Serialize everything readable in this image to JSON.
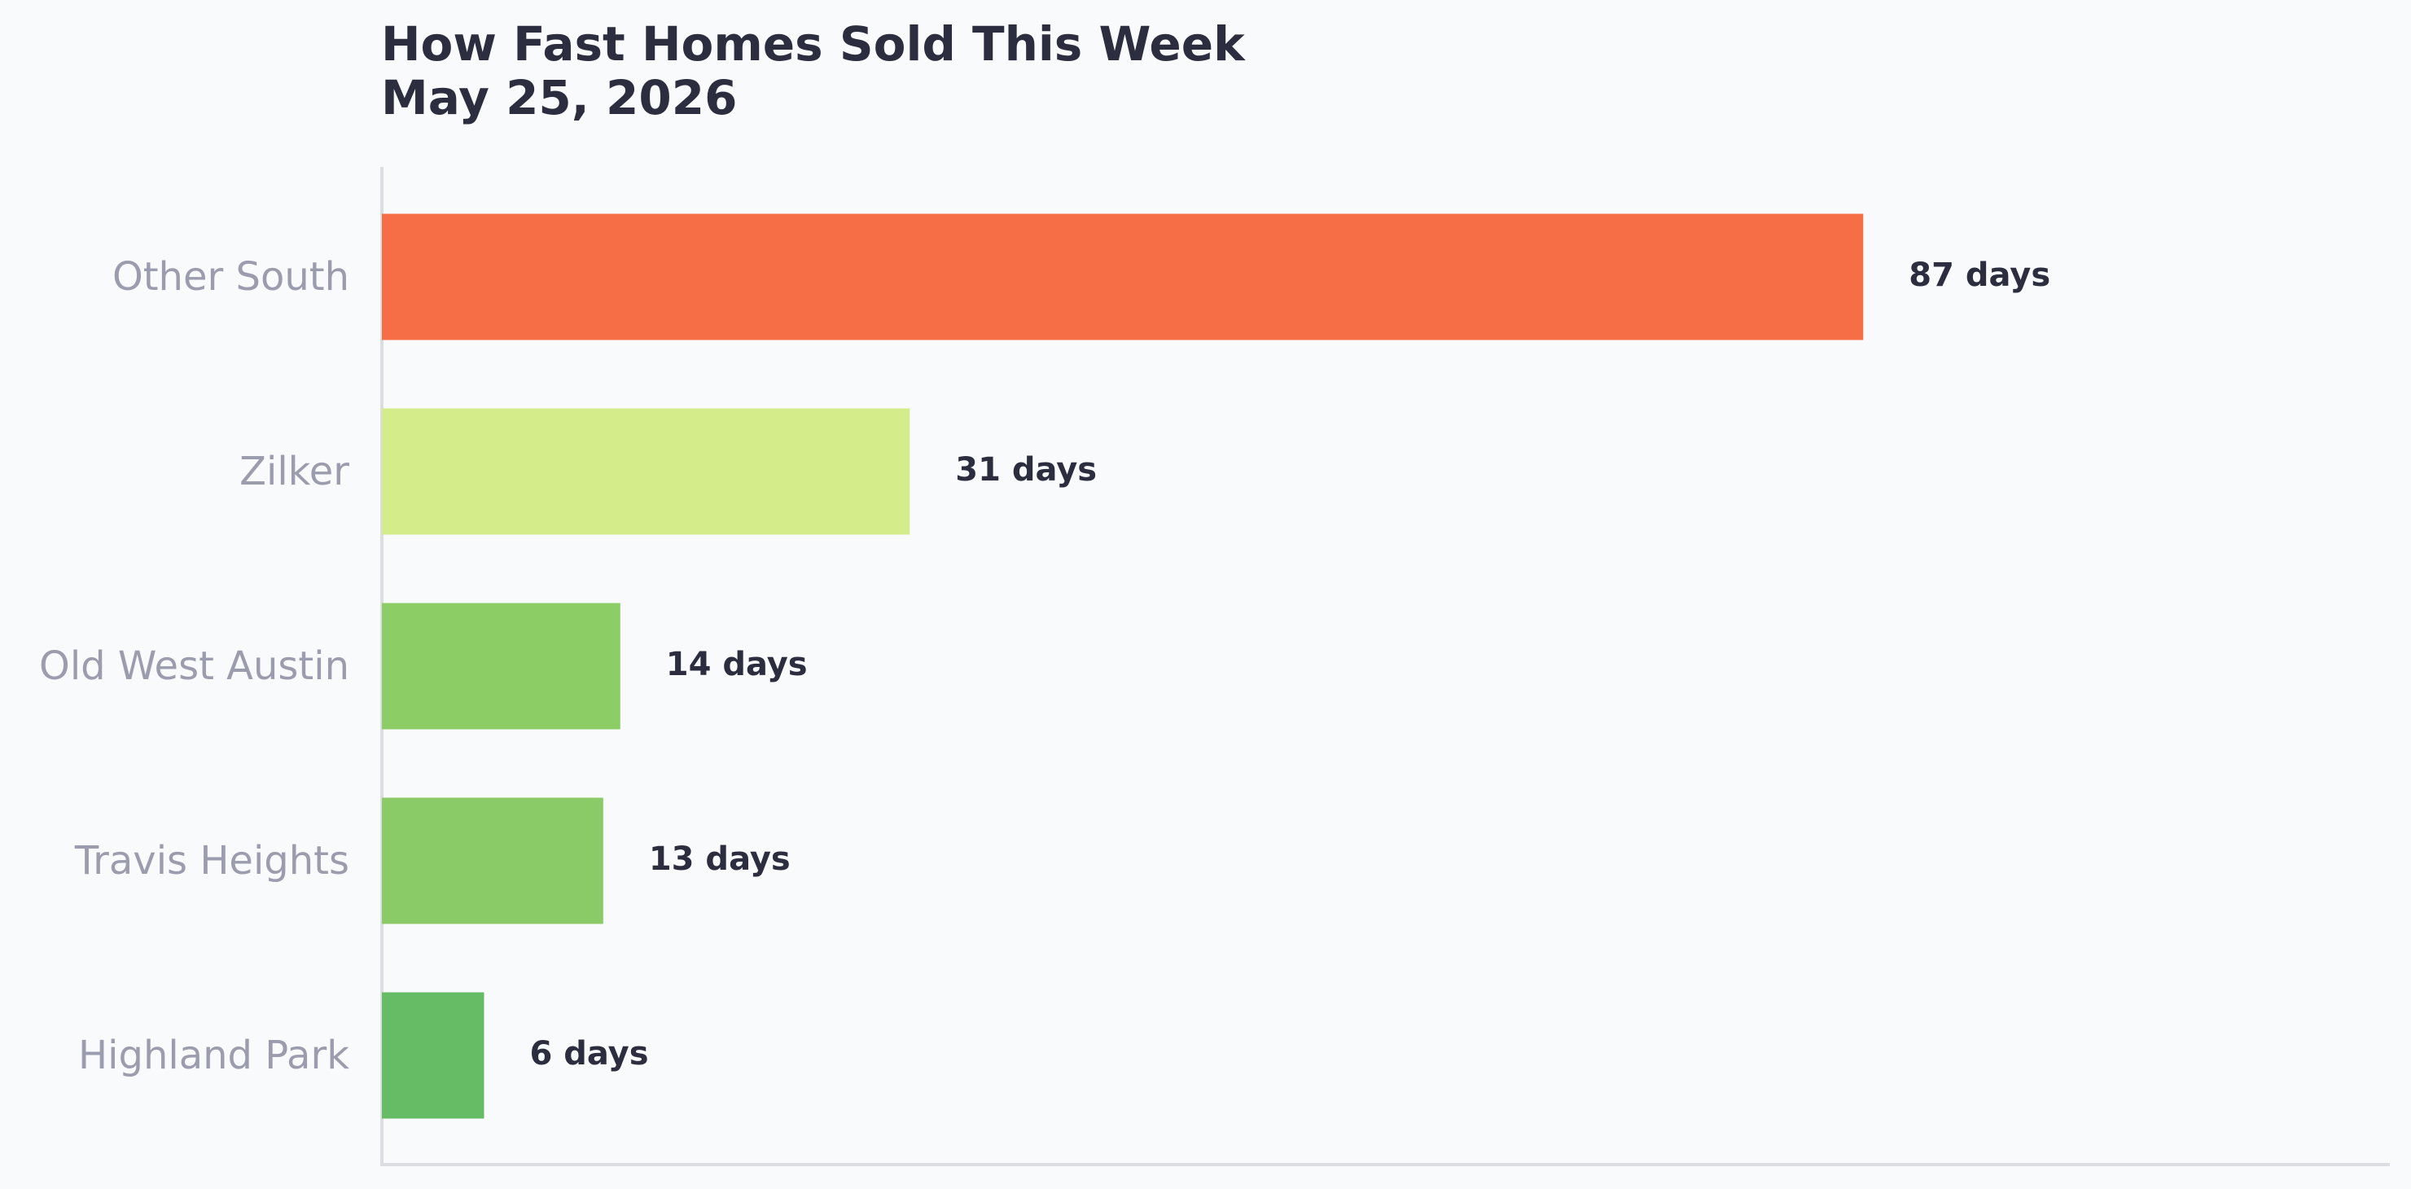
{
  "chart_data": {
    "type": "bar",
    "orientation": "horizontal",
    "title": "How Fast Homes Sold This Week",
    "subtitle": "May 25, 2026",
    "xlabel": "",
    "ylabel": "",
    "categories": [
      "Other South",
      "Zilker",
      "Old West Austin",
      "Travis Heights",
      "Highland Park"
    ],
    "values": [
      87,
      31,
      14,
      13,
      6
    ],
    "value_labels": [
      "87 days",
      "31 days",
      "14 days",
      "13 days",
      "6 days"
    ],
    "colors": [
      "#f66e45",
      "#d4ec89",
      "#8dcd66",
      "#8acb68",
      "#66bc64"
    ],
    "xlim": [
      0,
      113
    ],
    "grid": false,
    "legend": "none"
  }
}
